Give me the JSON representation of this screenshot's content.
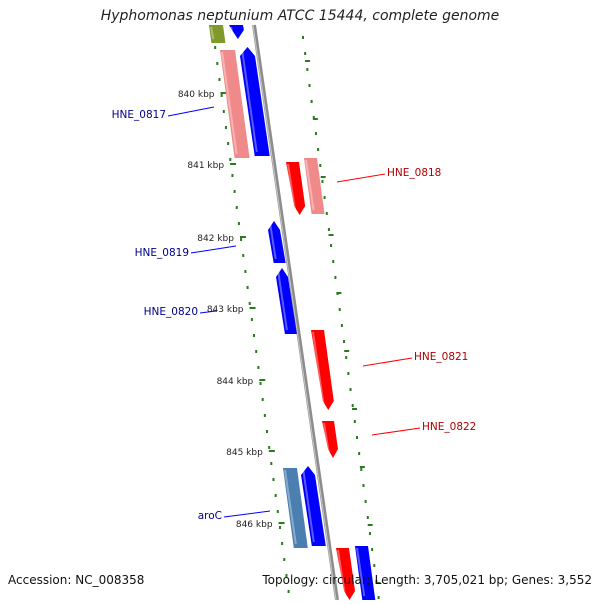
{
  "title": "Hyphomonas neptunium ATCC 15444, complete genome",
  "footer": {
    "accession": "Accession: NC_008358",
    "summary": "Topology: circular; Length: 3,705,021 bp; Genes: 3,552"
  },
  "colors": {
    "backbone": "#8c8c8c",
    "tick": "#2a7a1f",
    "forward_gene": "#0000ff",
    "reverse_gene": "#ff0000",
    "pseudo_forward": "#4a7fb0",
    "pseudo_reverse": "#f08a8a",
    "olive": "#7f9a2a",
    "label_forward": "#00008b",
    "label_reverse": "#b00000"
  },
  "ticks": [
    {
      "label": "840 kbp",
      "kbp": 840
    },
    {
      "label": "841 kbp",
      "kbp": 841
    },
    {
      "label": "842 kbp",
      "kbp": 842
    },
    {
      "label": "843 kbp",
      "kbp": 843
    },
    {
      "label": "844 kbp",
      "kbp": 844
    },
    {
      "label": "845 kbp",
      "kbp": 845
    },
    {
      "label": "846 kbp",
      "kbp": 846
    }
  ],
  "genes": [
    {
      "name": "HNE_0817",
      "strand": "forward",
      "label_side": "left"
    },
    {
      "name": "HNE_0818",
      "strand": "reverse",
      "label_side": "right"
    },
    {
      "name": "HNE_0819",
      "strand": "forward",
      "label_side": "left"
    },
    {
      "name": "HNE_0820",
      "strand": "forward",
      "label_side": "left"
    },
    {
      "name": "HNE_0821",
      "strand": "reverse",
      "label_side": "right"
    },
    {
      "name": "HNE_0822",
      "strand": "reverse",
      "label_side": "right"
    },
    {
      "name": "aroC",
      "strand": "forward",
      "label_side": "left"
    }
  ]
}
